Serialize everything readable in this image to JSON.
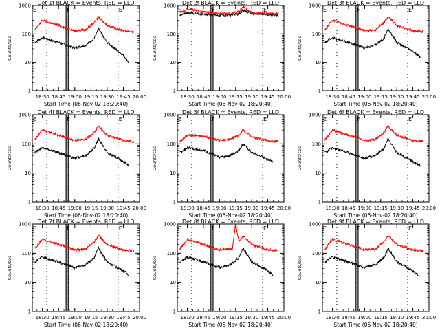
{
  "chart_data": [
    {
      "type": "line",
      "title": "Det 1f BLACK = Events, RED = LLD",
      "xlabel": "Start Time (06-Nov-02 18:20:40)",
      "ylabel": "Counts/sec",
      "x_tick_labels": [
        "18:30",
        "18:45",
        "19:00",
        "19:15",
        "19:30",
        "19:45",
        "20:00"
      ],
      "y_tick_labels": [
        "1",
        "10",
        "100",
        "1000"
      ],
      "yscale": "log",
      "ylim": [
        1,
        1000
      ],
      "xlim": [
        "18:20:40",
        "20:00:00"
      ],
      "markers": [
        "E",
        "F",
        "E"
      ],
      "series": [
        {
          "color": "#000000",
          "x": [
            "18:23",
            "18:30",
            "18:45",
            "19:00",
            "19:10",
            "19:18",
            "19:22",
            "19:30",
            "19:45",
            "19:50"
          ],
          "y": [
            50,
            75,
            50,
            32,
            40,
            70,
            150,
            50,
            18,
            10
          ]
        },
        {
          "color": "#ff0000",
          "x": [
            "18:23",
            "18:30",
            "18:45",
            "19:00",
            "19:10",
            "19:18",
            "19:22",
            "19:30",
            "19:45",
            "19:55"
          ],
          "y": [
            140,
            300,
            200,
            130,
            140,
            250,
            400,
            200,
            130,
            120
          ]
        }
      ]
    },
    {
      "type": "line",
      "title": "Det 2f BLACK = Events, RED = LLD",
      "xlabel": "Start Time (06-Nov-02 18:20:40)",
      "ylabel": "Counts/sec",
      "x_tick_labels": [
        "18:30",
        "18:45",
        "19:00",
        "19:15",
        "19:30",
        "19:45",
        "20:00"
      ],
      "y_tick_labels": [
        "1",
        "10",
        "100",
        "1000"
      ],
      "yscale": "log",
      "ylim": [
        1,
        1000
      ],
      "xlim": [
        "18:20:40",
        "20:00:00"
      ],
      "markers": [
        "E",
        "F",
        "E"
      ],
      "series": [
        {
          "color": "#000000",
          "x": [
            "18:23",
            "18:30",
            "18:45",
            "19:00",
            "19:10",
            "19:18",
            "19:22",
            "19:30",
            "19:45",
            "19:55"
          ],
          "y": [
            450,
            550,
            500,
            450,
            470,
            500,
            700,
            500,
            480,
            470
          ]
        },
        {
          "color": "#ff0000",
          "x": [
            "18:23",
            "18:30",
            "18:45",
            "19:00",
            "19:10",
            "19:18",
            "19:22",
            "19:30",
            "19:45",
            "19:55"
          ],
          "y": [
            550,
            750,
            600,
            500,
            520,
            600,
            900,
            550,
            520,
            500
          ]
        }
      ]
    },
    {
      "type": "line",
      "title": "Det 3f BLACK = Events, RED = LLD",
      "xlabel": "Start Time (06-Nov-02 18:20:40)",
      "ylabel": "Counts/sec",
      "x_tick_labels": [
        "18:30",
        "18:45",
        "19:00",
        "19:15",
        "19:30",
        "19:45",
        "20:00"
      ],
      "y_tick_labels": [
        "1",
        "10",
        "100",
        "1000"
      ],
      "yscale": "log",
      "ylim": [
        1,
        1000
      ],
      "xlim": [
        "18:20:40",
        "20:00:00"
      ],
      "markers": [
        "E",
        "F",
        "E"
      ],
      "series": [
        {
          "color": "#000000",
          "x": [
            "18:23",
            "18:30",
            "18:45",
            "19:00",
            "19:10",
            "19:18",
            "19:22",
            "19:30",
            "19:45",
            "19:52"
          ],
          "y": [
            50,
            75,
            50,
            32,
            40,
            70,
            150,
            50,
            25,
            15
          ]
        },
        {
          "color": "#ff0000",
          "x": [
            "18:23",
            "18:30",
            "18:45",
            "19:00",
            "19:10",
            "19:18",
            "19:22",
            "19:30",
            "19:45",
            "19:55"
          ],
          "y": [
            140,
            300,
            200,
            130,
            140,
            250,
            400,
            200,
            130,
            120
          ]
        }
      ]
    },
    {
      "type": "line",
      "title": "Det 4f BLACK = Events, RED = LLD",
      "xlabel": "Start Time (06-Nov-02 18:20:40)",
      "ylabel": "Counts/sec",
      "x_tick_labels": [
        "18:30",
        "18:45",
        "19:00",
        "19:15",
        "19:30",
        "19:45",
        "20:00"
      ],
      "y_tick_labels": [
        "1",
        "10",
        "100",
        "1000"
      ],
      "yscale": "log",
      "ylim": [
        1,
        1000
      ],
      "xlim": [
        "18:20:40",
        "20:00:00"
      ],
      "markers": [
        "E",
        "F",
        "E"
      ],
      "series": [
        {
          "color": "#000000",
          "x": [
            "18:23",
            "18:30",
            "18:45",
            "19:00",
            "19:10",
            "19:18",
            "19:22",
            "19:30",
            "19:45",
            "19:50"
          ],
          "y": [
            50,
            75,
            50,
            32,
            40,
            70,
            150,
            50,
            25,
            18
          ]
        },
        {
          "color": "#ff0000",
          "x": [
            "18:23",
            "18:30",
            "18:45",
            "19:00",
            "19:10",
            "19:18",
            "19:22",
            "19:30",
            "19:45",
            "19:55"
          ],
          "y": [
            140,
            300,
            200,
            130,
            140,
            250,
            400,
            200,
            130,
            120
          ]
        }
      ]
    },
    {
      "type": "line",
      "title": "Det 5f BLACK = Events, RED = LLD",
      "xlabel": "Start Time (06-Nov-02 18:20:40)",
      "ylabel": "Counts/sec",
      "x_tick_labels": [
        "18:30",
        "18:45",
        "19:00",
        "19:15",
        "19:30",
        "19:45",
        "20:00"
      ],
      "y_tick_labels": [
        "1",
        "10",
        "100",
        "1000"
      ],
      "yscale": "log",
      "ylim": [
        1,
        1000
      ],
      "xlim": [
        "18:20:40",
        "20:00:00"
      ],
      "markers": [
        "E",
        "F",
        "E"
      ],
      "series": [
        {
          "color": "#000000",
          "x": [
            "18:23",
            "18:30",
            "18:45",
            "19:00",
            "19:10",
            "19:18",
            "19:22",
            "19:30",
            "19:45",
            "19:50"
          ],
          "y": [
            50,
            75,
            60,
            35,
            40,
            60,
            100,
            50,
            30,
            25
          ]
        },
        {
          "color": "#ff0000",
          "x": [
            "18:23",
            "18:30",
            "18:45",
            "19:00",
            "19:10",
            "19:18",
            "19:22",
            "19:30",
            "19:45",
            "19:55"
          ],
          "y": [
            120,
            200,
            180,
            130,
            140,
            200,
            300,
            170,
            130,
            120
          ]
        }
      ]
    },
    {
      "type": "line",
      "title": "Det 6f BLACK = Events, RED = LLD",
      "xlabel": "Start Time (06-Nov-02 18:20:40)",
      "ylabel": "Counts/sec",
      "x_tick_labels": [
        "18:30",
        "18:45",
        "19:00",
        "19:15",
        "19:30",
        "19:45",
        "20:00"
      ],
      "y_tick_labels": [
        "1",
        "10",
        "100",
        "1000"
      ],
      "yscale": "log",
      "ylim": [
        1,
        1000
      ],
      "xlim": [
        "18:20:40",
        "20:00:00"
      ],
      "markers": [
        "E",
        "F",
        "E"
      ],
      "series": [
        {
          "color": "#000000",
          "x": [
            "18:23",
            "18:30",
            "18:45",
            "19:00",
            "19:10",
            "19:18",
            "19:22",
            "19:30",
            "19:45",
            "19:52"
          ],
          "y": [
            50,
            75,
            50,
            32,
            40,
            70,
            150,
            50,
            25,
            18
          ]
        },
        {
          "color": "#ff0000",
          "x": [
            "18:23",
            "18:30",
            "18:45",
            "19:00",
            "19:10",
            "19:18",
            "19:22",
            "19:30",
            "19:45",
            "19:55"
          ],
          "y": [
            140,
            300,
            200,
            130,
            140,
            250,
            400,
            200,
            130,
            120
          ]
        }
      ]
    },
    {
      "type": "line",
      "title": "Det 7f BLACK = Events, RED = LLD",
      "xlabel": "Start Time (06-Nov-02 18:20:40)",
      "ylabel": "Counts/sec",
      "x_tick_labels": [
        "18:30",
        "18:45",
        "19:00",
        "19:15",
        "19:30",
        "19:45",
        "20:00"
      ],
      "y_tick_labels": [
        "1",
        "10",
        "100",
        "1000"
      ],
      "yscale": "log",
      "ylim": [
        1,
        1000
      ],
      "xlim": [
        "18:20:40",
        "20:00:00"
      ],
      "markers": [
        "E",
        "F",
        "E"
      ],
      "series": [
        {
          "color": "#000000",
          "x": [
            "18:23",
            "18:30",
            "18:45",
            "19:00",
            "19:10",
            "19:18",
            "19:22",
            "19:30",
            "19:45",
            "19:50"
          ],
          "y": [
            50,
            75,
            50,
            32,
            40,
            70,
            150,
            50,
            25,
            18
          ]
        },
        {
          "color": "#ff0000",
          "x": [
            "18:23",
            "18:30",
            "18:45",
            "19:00",
            "19:10",
            "19:18",
            "19:22",
            "19:30",
            "19:45",
            "19:55"
          ],
          "y": [
            140,
            300,
            200,
            130,
            140,
            250,
            400,
            200,
            130,
            120
          ]
        }
      ]
    },
    {
      "type": "line",
      "title": "Det 8f BLACK = Events, RED = LLD",
      "xlabel": "Start Time (06-Nov-02 18:20:40)",
      "ylabel": "Counts/sec",
      "x_tick_labels": [
        "18:30",
        "18:45",
        "19:00",
        "19:15",
        "19:30",
        "19:45",
        "20:00"
      ],
      "y_tick_labels": [
        "1",
        "10",
        "100",
        "1000"
      ],
      "yscale": "log",
      "ylim": [
        1,
        1000
      ],
      "xlim": [
        "18:20:40",
        "20:00:00"
      ],
      "markers": [
        "E",
        "F",
        "E"
      ],
      "series": [
        {
          "color": "#000000",
          "x": [
            "18:23",
            "18:30",
            "18:45",
            "19:00",
            "19:10",
            "19:18",
            "19:22",
            "19:30",
            "19:45",
            "19:50"
          ],
          "y": [
            50,
            75,
            50,
            32,
            40,
            70,
            150,
            50,
            25,
            18
          ]
        },
        {
          "color": "#ff0000",
          "x": [
            "18:23",
            "18:30",
            "18:45",
            "19:00",
            "19:12",
            "19:15",
            "19:18",
            "19:22",
            "19:30",
            "19:45",
            "19:55"
          ],
          "y": [
            140,
            300,
            200,
            130,
            140,
            1000,
            250,
            400,
            200,
            130,
            120
          ]
        }
      ]
    },
    {
      "type": "line",
      "title": "Det 9f BLACK = Events, RED = LLD",
      "xlabel": "Start Time (06-Nov-02 18:20:40)",
      "ylabel": "Counts/sec",
      "x_tick_labels": [
        "18:30",
        "18:45",
        "19:00",
        "19:15",
        "19:30",
        "19:45",
        "20:00"
      ],
      "y_tick_labels": [
        "1",
        "10",
        "100",
        "1000"
      ],
      "yscale": "log",
      "ylim": [
        1,
        1000
      ],
      "xlim": [
        "18:20:40",
        "20:00:00"
      ],
      "markers": [
        "E",
        "F",
        "E"
      ],
      "series": [
        {
          "color": "#000000",
          "x": [
            "18:23",
            "18:30",
            "18:45",
            "19:00",
            "19:10",
            "19:18",
            "19:22",
            "19:30",
            "19:45",
            "19:50"
          ],
          "y": [
            50,
            75,
            50,
            32,
            40,
            70,
            150,
            50,
            25,
            18
          ]
        },
        {
          "color": "#ff0000",
          "x": [
            "18:23",
            "18:30",
            "18:45",
            "19:00",
            "19:10",
            "19:18",
            "19:22",
            "19:30",
            "19:45",
            "19:55"
          ],
          "y": [
            140,
            300,
            200,
            130,
            140,
            250,
            400,
            200,
            130,
            120
          ]
        }
      ]
    }
  ]
}
